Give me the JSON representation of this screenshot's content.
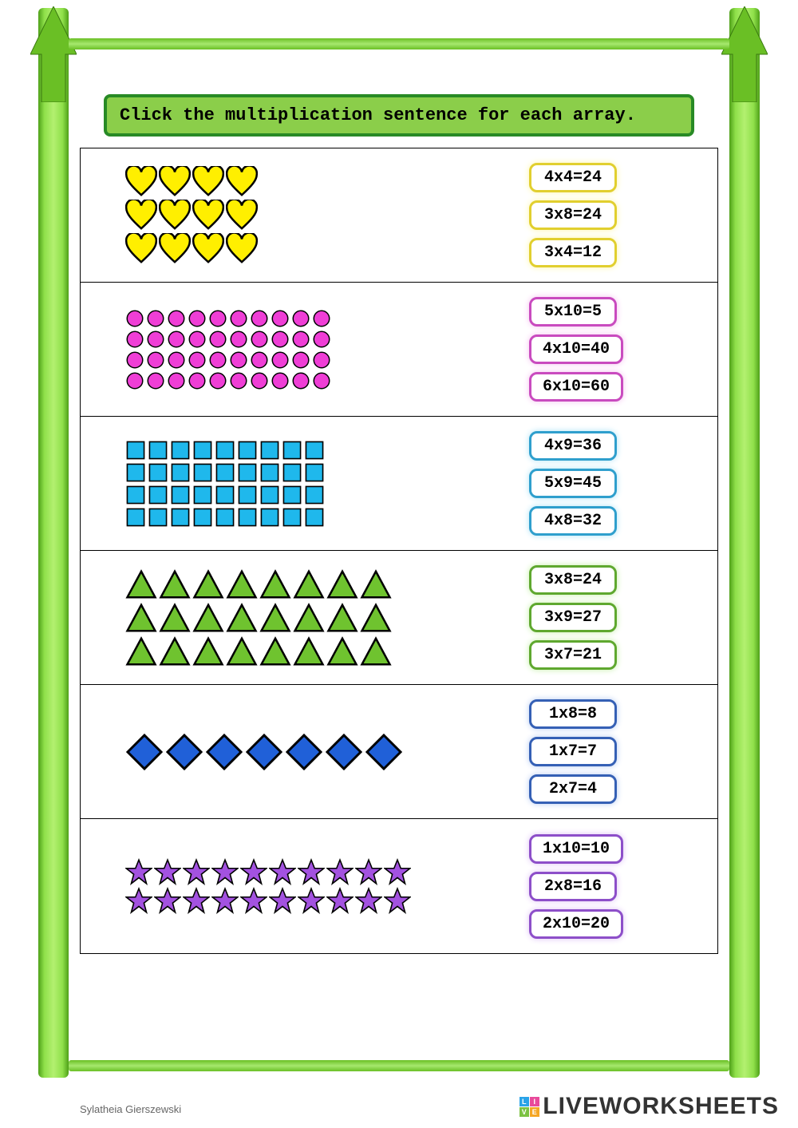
{
  "instruction": "Click the multiplication sentence for each array.",
  "author": "Sylatheia Gierszewski",
  "logo_text": "LIVEWORKSHEETS",
  "problems": [
    {
      "shape": "heart",
      "rows": 3,
      "cols": 4,
      "fill": "#ffef00",
      "stroke": "#000000",
      "size": 40,
      "answers": [
        "4x4=24",
        "3x8=24",
        "3x4=12"
      ],
      "glow": "#fff6a8",
      "border": "#e1cf2f"
    },
    {
      "shape": "circle",
      "rows": 4,
      "cols": 10,
      "fill": "#ef3ed6",
      "stroke": "#000000",
      "size": 24,
      "answers": [
        "5x10=5",
        "4x10=40",
        "6x10=60"
      ],
      "glow": "#f4c1ef",
      "border": "#c94bbf"
    },
    {
      "shape": "square",
      "rows": 4,
      "cols": 9,
      "fill": "#1fb8ec",
      "stroke": "#000000",
      "size": 26,
      "answers": [
        "4x9=36",
        "5x9=45",
        "4x8=32"
      ],
      "glow": "#b0e4f6",
      "border": "#2f9fcd"
    },
    {
      "shape": "triangle",
      "rows": 3,
      "cols": 8,
      "fill": "#6fc32f",
      "stroke": "#000000",
      "size": 40,
      "answers": [
        "3x8=24",
        "3x9=27",
        "3x7=21"
      ],
      "glow": "#c6f0a8",
      "border": "#5fa82f"
    },
    {
      "shape": "diamond",
      "rows": 1,
      "cols": 7,
      "fill": "#2060d8",
      "stroke": "#000000",
      "size": 48,
      "answers": [
        "1x8=8",
        "1x7=7",
        "2x7=4"
      ],
      "glow": "#b7ccf2",
      "border": "#3560b5"
    },
    {
      "shape": "star",
      "rows": 2,
      "cols": 10,
      "fill": "#a352e0",
      "stroke": "#000000",
      "size": 34,
      "answers": [
        "1x10=10",
        "2x8=16",
        "2x10=20"
      ],
      "glow": "#dec2f5",
      "border": "#8d4fc9"
    }
  ]
}
